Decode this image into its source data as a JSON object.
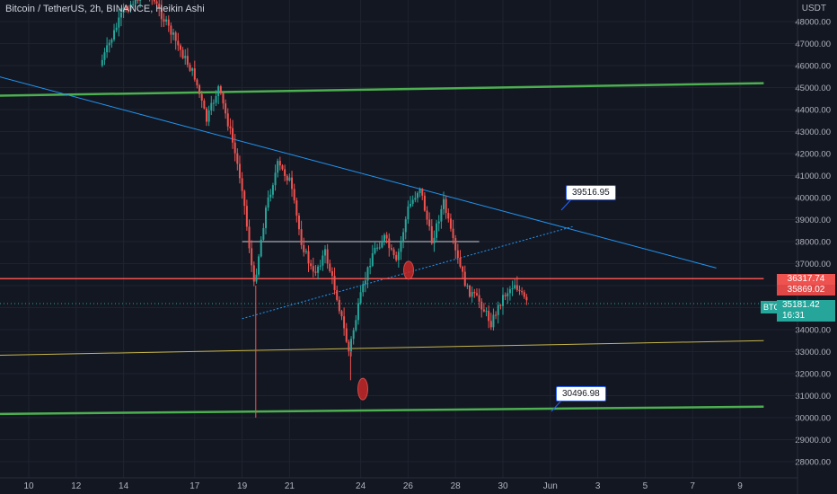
{
  "header": {
    "title": "Bitcoin / TetherUS, 2h, BINANCE, Heikin Ashi",
    "currency": "USDT"
  },
  "chart_data": {
    "type": "candlestick",
    "title": "Bitcoin / TetherUS, 2h, BINANCE, Heikin Ashi",
    "y_ticks": [
      28000,
      29000,
      30000,
      31000,
      32000,
      33000,
      34000,
      35000,
      36000,
      37000,
      38000,
      39000,
      40000,
      41000,
      42000,
      43000,
      44000,
      45000,
      46000,
      47000,
      48000
    ],
    "ylim": [
      27700,
      49000
    ],
    "x_tick_labels": [
      "10",
      "12",
      "14",
      "17",
      "19",
      "21",
      "24",
      "26",
      "28",
      "30",
      "Jun",
      "3",
      "5",
      "7",
      "9"
    ],
    "grid": true,
    "price_path": [
      {
        "date": "May 13",
        "price": 46000
      },
      {
        "date": "May 14",
        "price": 48500
      },
      {
        "date": "May 15",
        "price": 49500
      },
      {
        "date": "May 16",
        "price": 47500
      },
      {
        "date": "May 17",
        "price": 45500
      },
      {
        "date": "May 17 pm",
        "price": 43500
      },
      {
        "date": "May 18",
        "price": 45000
      },
      {
        "date": "May 18 pm",
        "price": 43000
      },
      {
        "date": "May 19",
        "price": 40500
      },
      {
        "date": "May 19 pm",
        "price": 36000
      },
      {
        "date": "May 20",
        "price": 39500
      },
      {
        "date": "May 20 pm",
        "price": 41500
      },
      {
        "date": "May 21",
        "price": 40800
      },
      {
        "date": "May 21 pm",
        "price": 38000
      },
      {
        "date": "May 22",
        "price": 36500
      },
      {
        "date": "May 22 pm",
        "price": 37500
      },
      {
        "date": "May 23",
        "price": 35500
      },
      {
        "date": "May 23 pm",
        "price": 33000
      },
      {
        "date": "May 24",
        "price": 35500
      },
      {
        "date": "May 24 pm",
        "price": 37500
      },
      {
        "date": "May 25",
        "price": 38200
      },
      {
        "date": "May 25 pm",
        "price": 37000
      },
      {
        "date": "May 26",
        "price": 39500
      },
      {
        "date": "May 26 pm",
        "price": 40500
      },
      {
        "date": "May 27",
        "price": 38000
      },
      {
        "date": "May 27 pm",
        "price": 39800
      },
      {
        "date": "May 28",
        "price": 37500
      },
      {
        "date": "May 28 pm",
        "price": 35800
      },
      {
        "date": "May 29",
        "price": 35300
      },
      {
        "date": "May 29 pm",
        "price": 34300
      },
      {
        "date": "May 30",
        "price": 35500
      },
      {
        "date": "May 30 pm",
        "price": 36100
      },
      {
        "date": "May 31",
        "price": 35200
      }
    ],
    "trendlines": [
      {
        "name": "green-top",
        "color": "#4caf50",
        "points": [
          [
            "May 7",
            44600
          ],
          [
            "Jun 10",
            45200
          ]
        ]
      },
      {
        "name": "green-bottom",
        "color": "#4caf50",
        "points": [
          [
            "May 7",
            30150
          ],
          [
            "Jun 10",
            30500
          ]
        ]
      },
      {
        "name": "blue-descending",
        "color": "#2196f3",
        "points": [
          [
            "May 7",
            46000
          ],
          [
            "Jun 8",
            36800
          ]
        ]
      },
      {
        "name": "blue-dotted",
        "color": "#2196f3",
        "points": [
          [
            "May 19",
            34500
          ],
          [
            "Jun 2",
            38700
          ]
        ]
      },
      {
        "name": "yellow",
        "color": "#c8b64a",
        "points": [
          [
            "May 7",
            32800
          ],
          [
            "Jun 10",
            33500
          ]
        ]
      },
      {
        "name": "red-horizontal",
        "color": "#ef5350",
        "points": [
          [
            "May 7",
            36317.74
          ],
          [
            "Jun 10",
            36317.74
          ]
        ]
      },
      {
        "name": "gray-horizontal",
        "color": "#9598a1",
        "points": [
          [
            "May 19",
            38000
          ],
          [
            "May 29",
            38000
          ]
        ]
      }
    ],
    "annotations": [
      {
        "text": "39516.95",
        "price": 39516.95
      },
      {
        "text": "30496.98",
        "price": 30496.98
      }
    ],
    "highlights": [
      {
        "date": "May 25",
        "price": 36700
      },
      {
        "date": "May 23",
        "price": 31300
      }
    ],
    "price_labels": [
      {
        "text": "36317.74",
        "price": 36317.74,
        "color": "#ef5350"
      },
      {
        "text": "35869.02",
        "price": 35869.02,
        "color": "#ef5350"
      }
    ],
    "symbol": "BTCUSDT",
    "last_price": "35181.42",
    "countdown": "16:31"
  }
}
